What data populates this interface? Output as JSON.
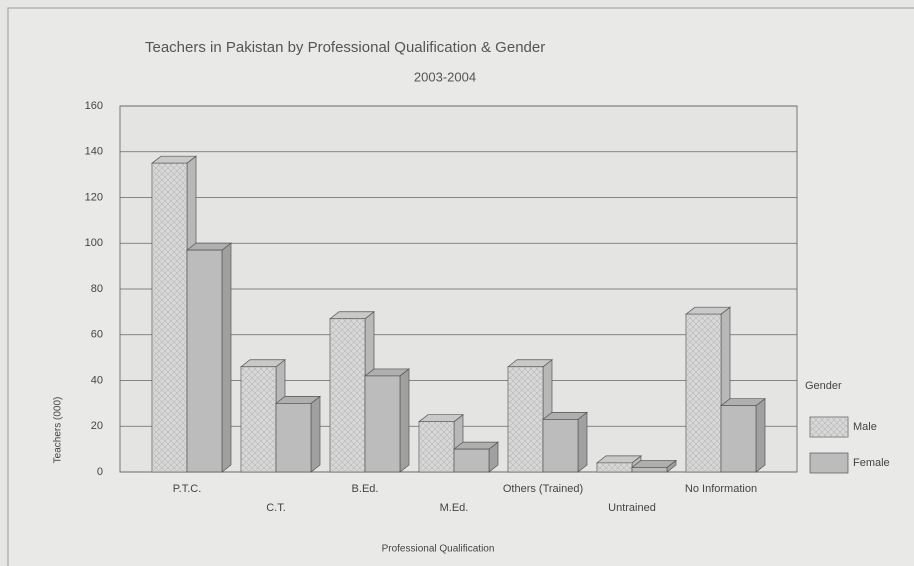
{
  "chart_data": {
    "type": "bar",
    "title": "Teachers in Pakistan by Professional  Qualification & Gender",
    "subtitle": "2003-2004",
    "x_label": "Professional Qualification",
    "y_label": "Teachers (000)",
    "legend_title": "Gender",
    "categories": [
      "P.T.C.",
      "C.T.",
      "B.Ed.",
      "M.Ed.",
      "Others (Trained)",
      "Untrained",
      "No Information"
    ],
    "series": [
      {
        "name": "Male",
        "color": "#d8d8d8",
        "values": [
          135,
          46,
          67,
          22,
          46,
          4,
          69
        ]
      },
      {
        "name": "Female",
        "color": "#bcbcbc",
        "values": [
          97,
          30,
          42,
          10,
          23,
          2,
          29
        ]
      }
    ],
    "ylim": [
      0,
      160
    ],
    "yticks": [
      0,
      20,
      40,
      60,
      80,
      100,
      120,
      140,
      160
    ],
    "grid": true,
    "legend": "right"
  }
}
